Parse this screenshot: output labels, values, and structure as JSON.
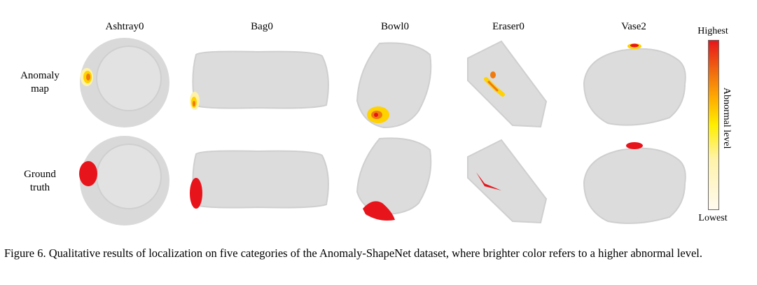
{
  "figure": {
    "columns": [
      "Ashtray0",
      "Bag0",
      "Bowl0",
      "Eraser0",
      "Vase2"
    ],
    "rows": [
      {
        "line1": "Anomaly",
        "line2": "map"
      },
      {
        "line1": "Ground",
        "line2": "truth"
      }
    ],
    "colorbar": {
      "top": "Highest",
      "bottom": "Lowest",
      "axis": "Abnormal level"
    },
    "colors": {
      "object": "#dcdcdc",
      "object_edge": "#cfcfcf",
      "gt": "#e8141c",
      "hot": "#e8141c",
      "warm": "#f07a10",
      "mid": "#ffd200",
      "cool": "#fff2a8"
    }
  },
  "caption": {
    "text": "Figure 6. Qualitative results of localization on five categories of the Anomaly-ShapeNet dataset, where brighter color refers to a higher abnormal level."
  }
}
